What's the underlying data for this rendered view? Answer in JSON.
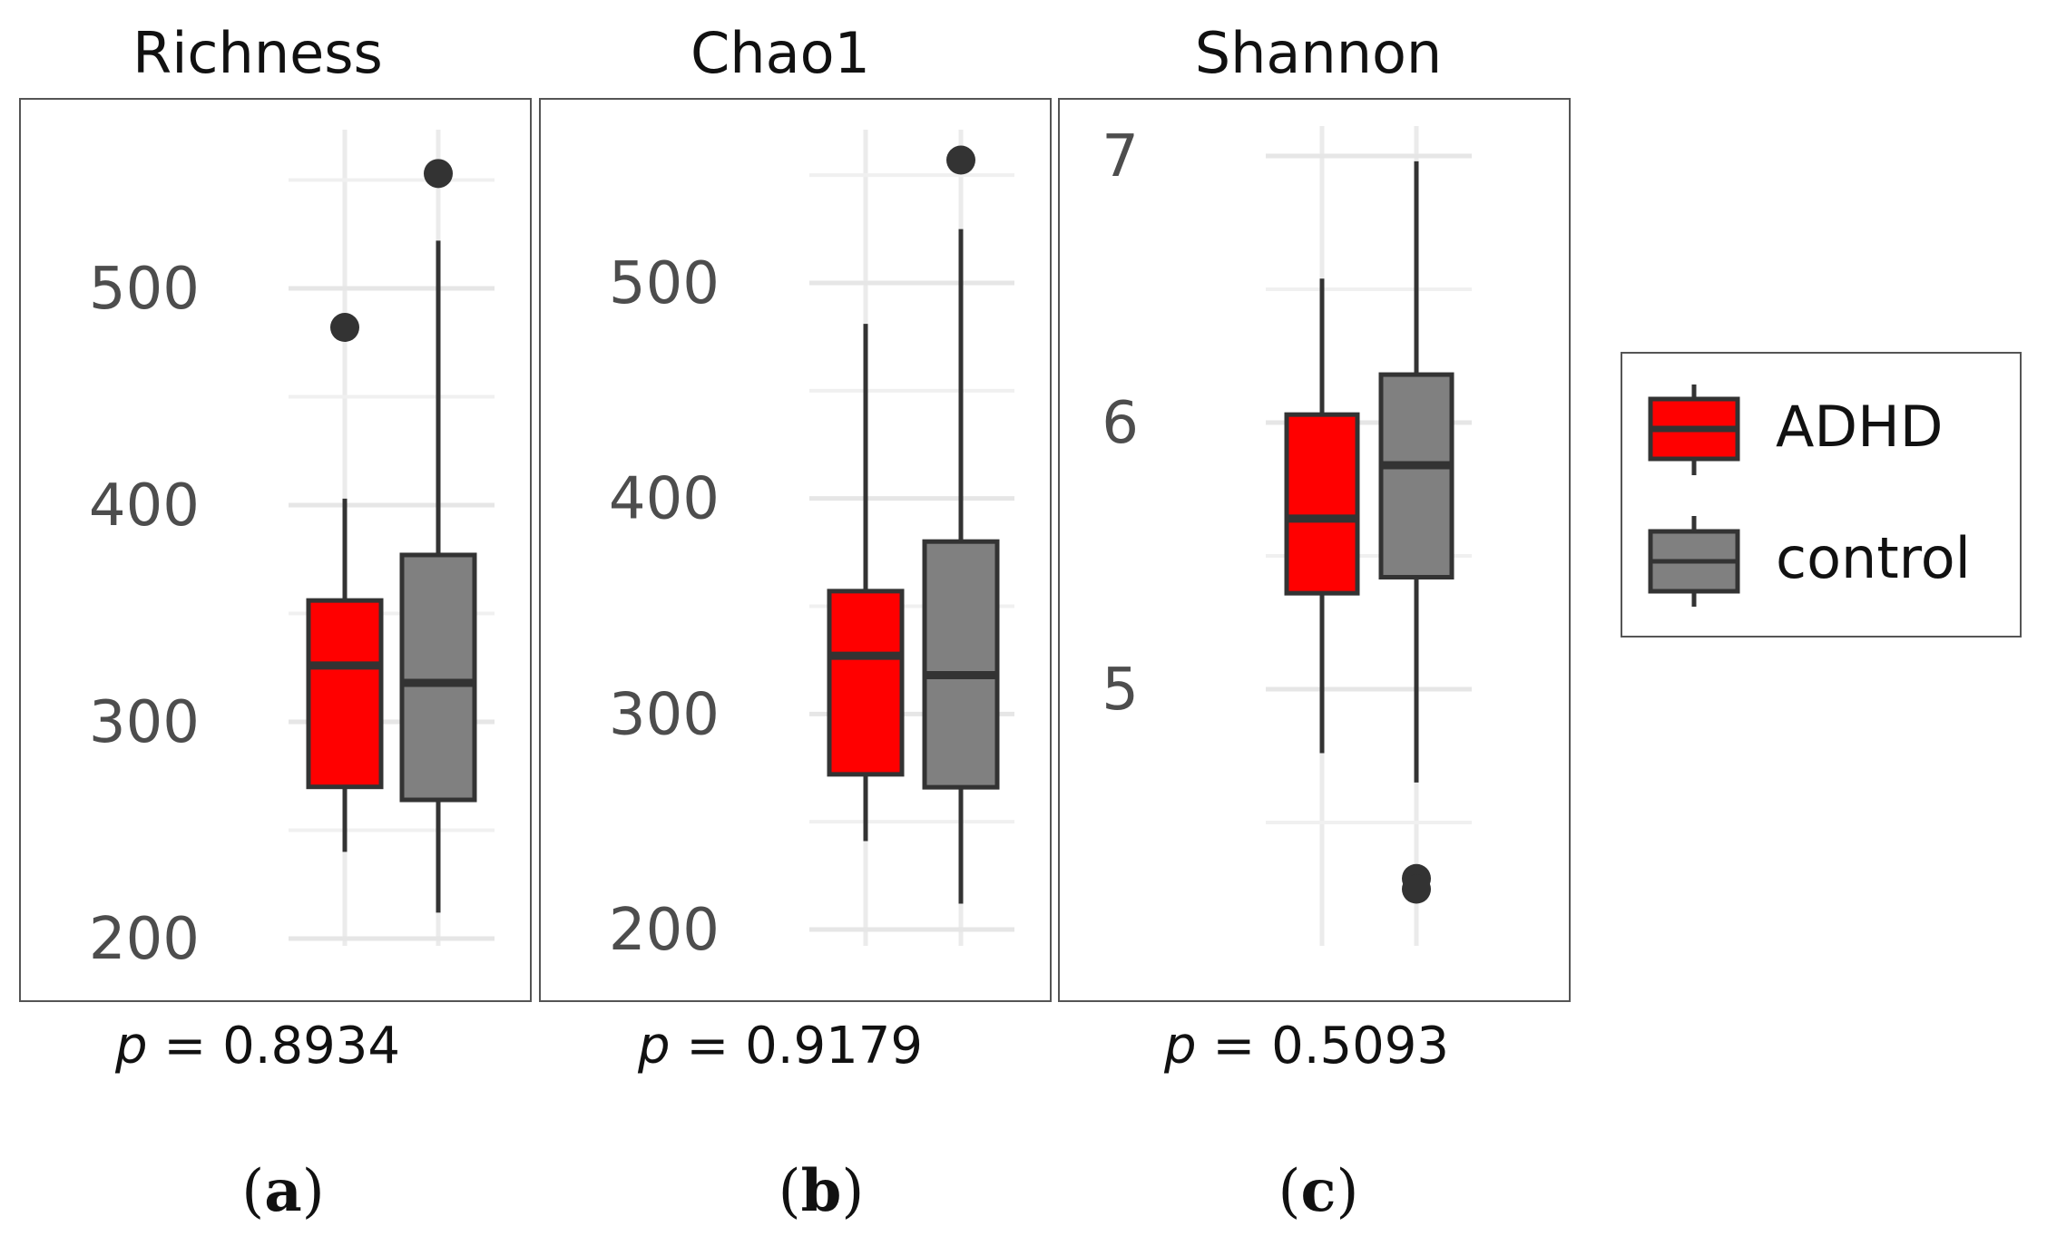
{
  "legend": {
    "entries": [
      {
        "label": "ADHD",
        "color": "#ff0000"
      },
      {
        "label": "control",
        "color": "#808080"
      }
    ]
  },
  "chart_data": [
    {
      "type": "box",
      "title": "Richness",
      "p_value": "0.8934",
      "subfigure": "a",
      "ylim": [
        175,
        575
      ],
      "yticks": [
        200,
        300,
        400,
        500
      ],
      "minor_gridlines": [
        250,
        350,
        450,
        550
      ],
      "groups": [
        {
          "name": "ADHD",
          "color": "#ff0000",
          "min": 240,
          "q1": 270,
          "median": 326,
          "q3": 356,
          "max": 403,
          "outliers": [
            482
          ]
        },
        {
          "name": "control",
          "color": "#808080",
          "min": 212,
          "q1": 264,
          "median": 318,
          "q3": 377,
          "max": 522,
          "outliers": [
            553
          ]
        }
      ]
    },
    {
      "type": "box",
      "title": "Chao1",
      "p_value": "0.9179",
      "subfigure": "b",
      "ylim": [
        175,
        575
      ],
      "yticks": [
        200,
        300,
        400,
        500
      ],
      "minor_gridlines": [
        250,
        350,
        450,
        550
      ],
      "groups": [
        {
          "name": "ADHD",
          "color": "#ff0000",
          "min": 241,
          "q1": 272,
          "median": 327,
          "q3": 357,
          "max": 481,
          "outliers": []
        },
        {
          "name": "control",
          "color": "#808080",
          "min": 212,
          "q1": 266,
          "median": 318,
          "q3": 380,
          "max": 525,
          "outliers": [
            557
          ]
        }
      ]
    },
    {
      "type": "box",
      "title": "Shannon",
      "p_value": "0.5093",
      "subfigure": "c",
      "ylim": [
        3.95,
        7.1
      ],
      "yticks": [
        5,
        6,
        7
      ],
      "minor_gridlines": [
        4.5,
        5.5,
        6.5
      ],
      "groups": [
        {
          "name": "ADHD",
          "color": "#ff0000",
          "min": 4.76,
          "q1": 5.36,
          "median": 5.64,
          "q3": 6.03,
          "max": 6.54,
          "outliers": []
        },
        {
          "name": "control",
          "color": "#808080",
          "min": 4.65,
          "q1": 5.42,
          "median": 5.84,
          "q3": 6.18,
          "max": 6.98,
          "outliers": [
            4.29,
            4.25
          ]
        }
      ]
    }
  ]
}
